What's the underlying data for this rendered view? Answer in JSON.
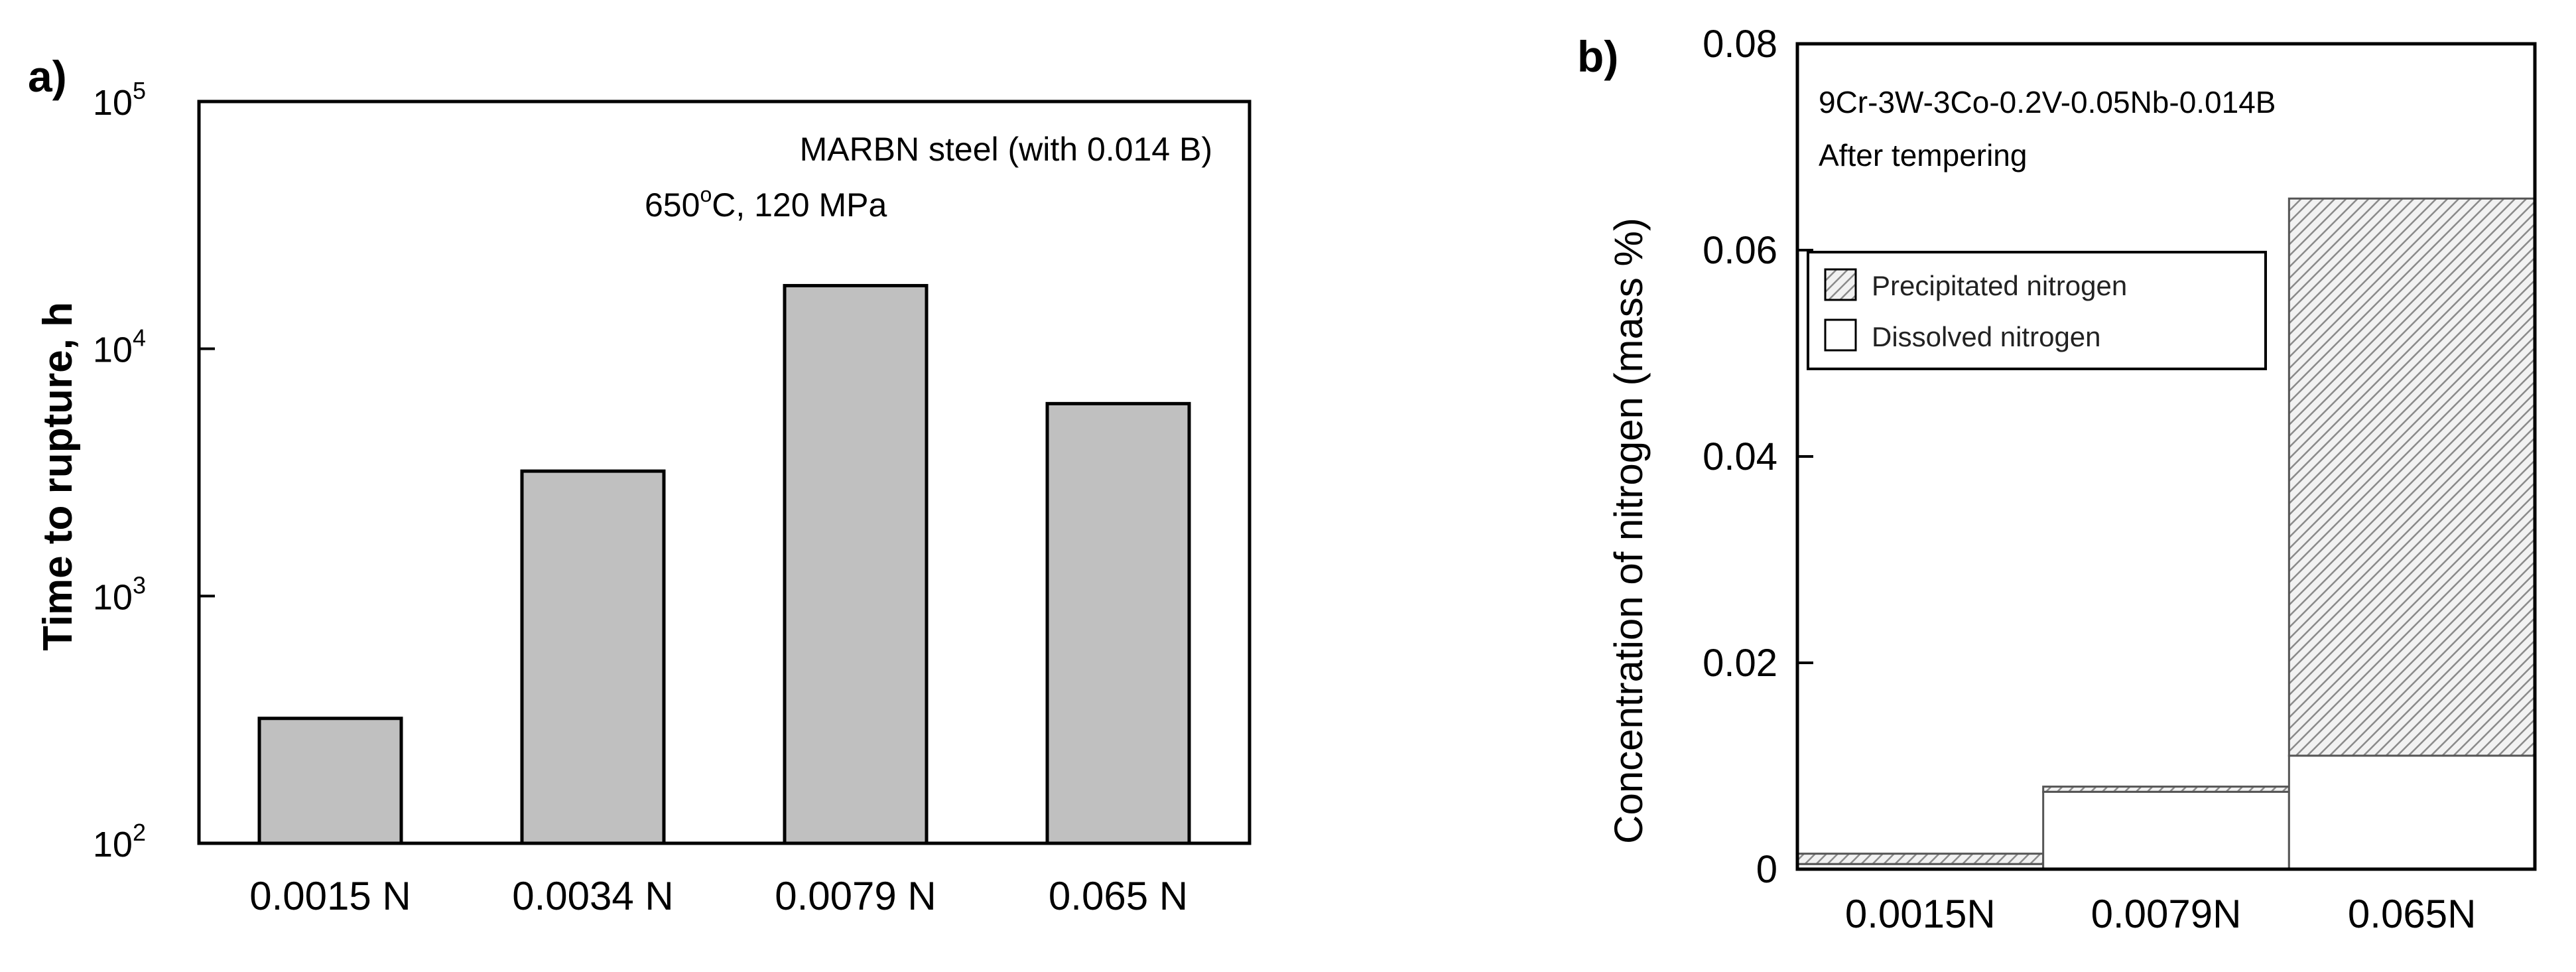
{
  "chart_data": [
    {
      "panel": "a)",
      "type": "bar",
      "ylabel": "Time to rupture, h",
      "yscale": "log",
      "ylim": [
        100,
        100000
      ],
      "yticks": [
        {
          "value": 100,
          "base": "10",
          "exp": "2"
        },
        {
          "value": 1000,
          "base": "10",
          "exp": "3"
        },
        {
          "value": 10000,
          "base": "10",
          "exp": "4"
        },
        {
          "value": 100000,
          "base": "10",
          "exp": "5"
        }
      ],
      "categories": [
        "0.0015 N",
        "0.0034 N",
        "0.0079 N",
        "0.065 N"
      ],
      "values": [
        320,
        3200,
        18000,
        6000
      ],
      "annotation_line1": "MARBN steel (with 0.014 B)",
      "annotation_line2_pre": "650",
      "annotation_line2_sup": "o",
      "annotation_line2_post": "C, 120 MPa",
      "bar_color": "#c0c0c0"
    },
    {
      "panel": "b)",
      "type": "bar",
      "stacked": true,
      "ylabel": "Concentration of nitrogen  (mass %)",
      "ylim": [
        0,
        0.08
      ],
      "yticks": [
        "0",
        "0.02",
        "0.04",
        "0.06",
        "0.08"
      ],
      "categories": [
        "0.0015N",
        "0.0079N",
        "0.065N"
      ],
      "series": [
        {
          "name": "Dissolved nitrogen",
          "values": [
            0.0005,
            0.0075,
            0.011
          ]
        },
        {
          "name": "Precipitated nitrogen",
          "values": [
            0.001,
            0.0005,
            0.054
          ]
        }
      ],
      "annotation_line1": "9Cr-3W-3Co-0.2V-0.05Nb-0.014B",
      "annotation_line2": "After tempering"
    }
  ]
}
